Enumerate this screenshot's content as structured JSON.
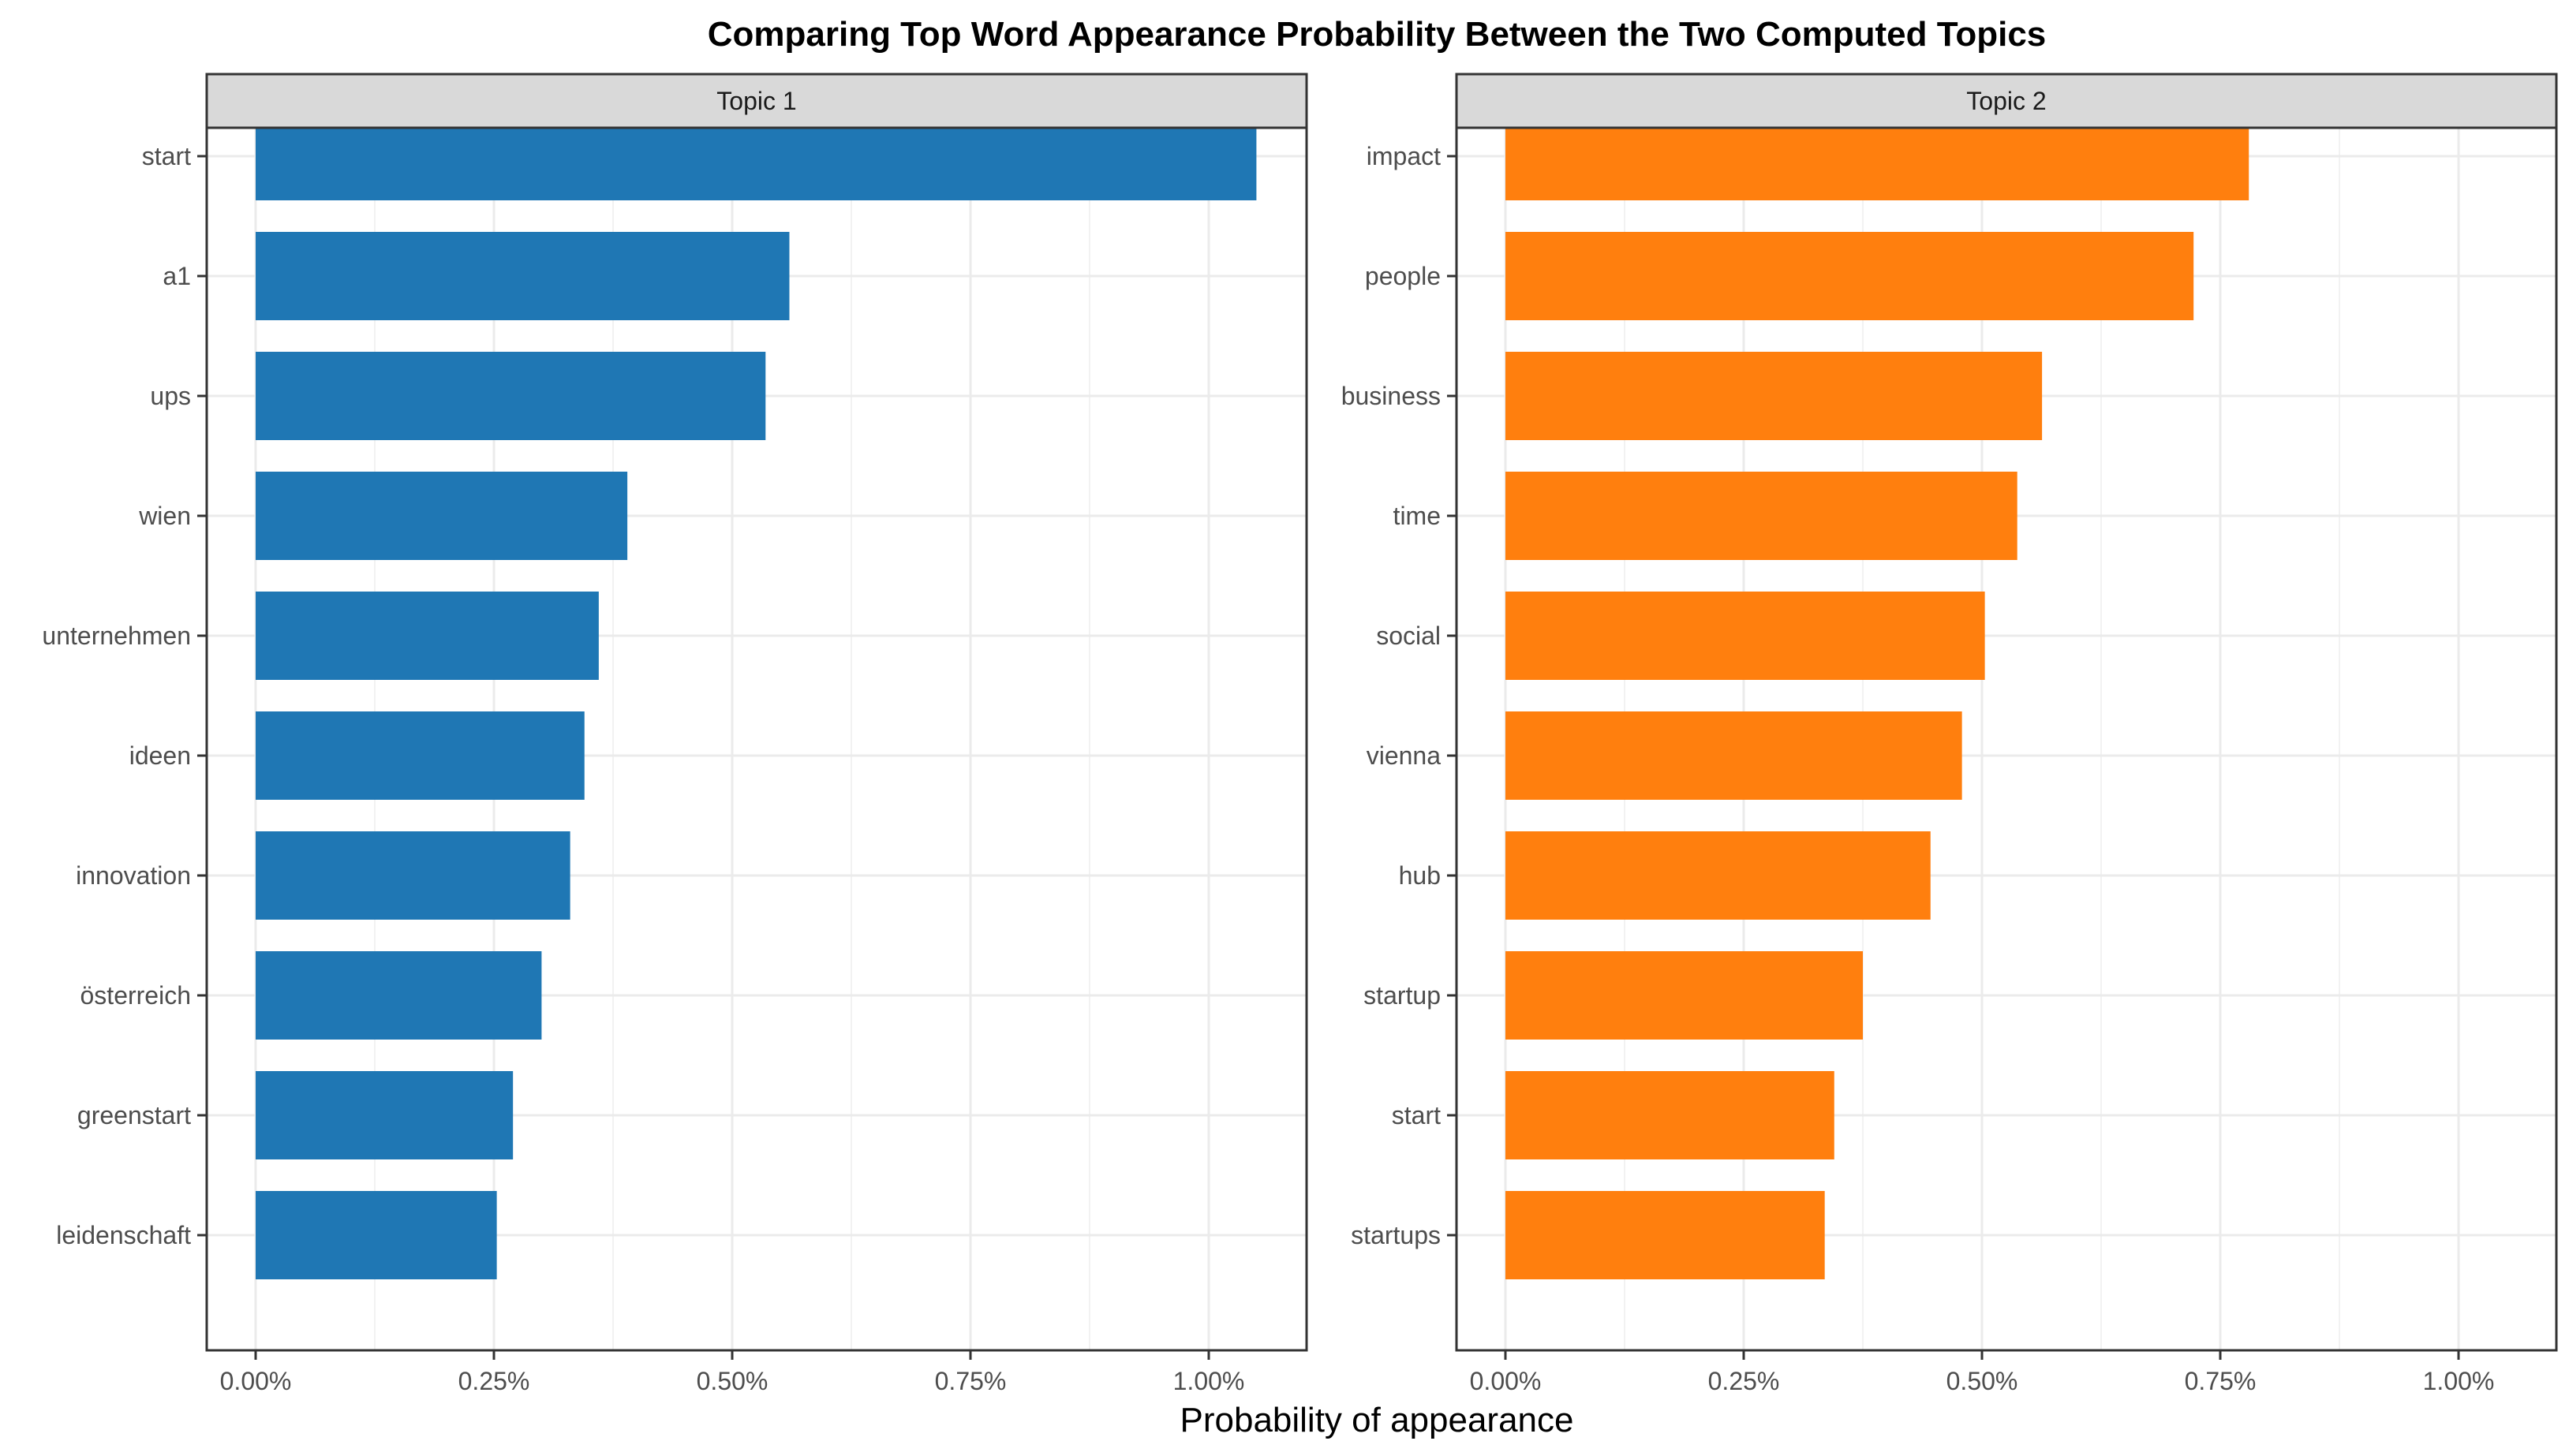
{
  "chart_data": {
    "type": "bar",
    "orientation": "horizontal",
    "title": "Comparing Top Word Appearance Probability Between the Two Computed Topics",
    "xlabel": "Probability of appearance",
    "ylabel": "",
    "xlim": [
      0,
      1.1
    ],
    "x_ticks": [
      0,
      0.25,
      0.5,
      0.75,
      1.0
    ],
    "x_tick_labels": [
      "0.00%",
      "0.25%",
      "0.50%",
      "0.75%",
      "1.00%"
    ],
    "grid": true,
    "legend": "none",
    "panels": [
      {
        "strip_label": "Topic 1",
        "color": "#1f77b4",
        "categories": [
          "start",
          "a1",
          "ups",
          "wien",
          "unternehmen",
          "ideen",
          "innovation",
          "österreich",
          "greenstart",
          "leidenschaft"
        ],
        "values": [
          1.05,
          0.56,
          0.535,
          0.39,
          0.36,
          0.345,
          0.33,
          0.3,
          0.27,
          0.253
        ]
      },
      {
        "strip_label": "Topic 2",
        "color": "#ff7f0e",
        "categories": [
          "impact",
          "people",
          "business",
          "time",
          "social",
          "vienna",
          "hub",
          "startup",
          "start",
          "startups"
        ],
        "values": [
          0.78,
          0.722,
          0.563,
          0.537,
          0.503,
          0.479,
          0.446,
          0.375,
          0.345,
          0.335
        ]
      }
    ]
  }
}
